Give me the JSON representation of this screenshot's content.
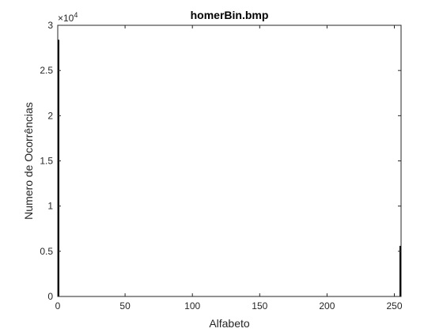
{
  "chart_data": {
    "type": "bar",
    "title": "homerBin.bmp",
    "xlabel": "Alfabeto",
    "ylabel": "Numero de Ocorrências",
    "xlim": [
      0,
      255
    ],
    "ylim": [
      0,
      30000
    ],
    "xticks": [
      0,
      50,
      100,
      150,
      200,
      250
    ],
    "xtick_labels": [
      "0",
      "50",
      "100",
      "150",
      "200",
      "250"
    ],
    "yticks": [
      0,
      5000,
      10000,
      15000,
      20000,
      25000,
      30000
    ],
    "ytick_labels": [
      "0",
      "0.5",
      "1",
      "1.5",
      "2",
      "2.5",
      "3"
    ],
    "y_exponent_label": {
      "base": "×10",
      "exp": "4"
    },
    "bar_color": "#000000",
    "grid": false,
    "bars": [
      {
        "x": 0,
        "value": 28400
      },
      {
        "x": 255,
        "value": 5600
      }
    ]
  }
}
